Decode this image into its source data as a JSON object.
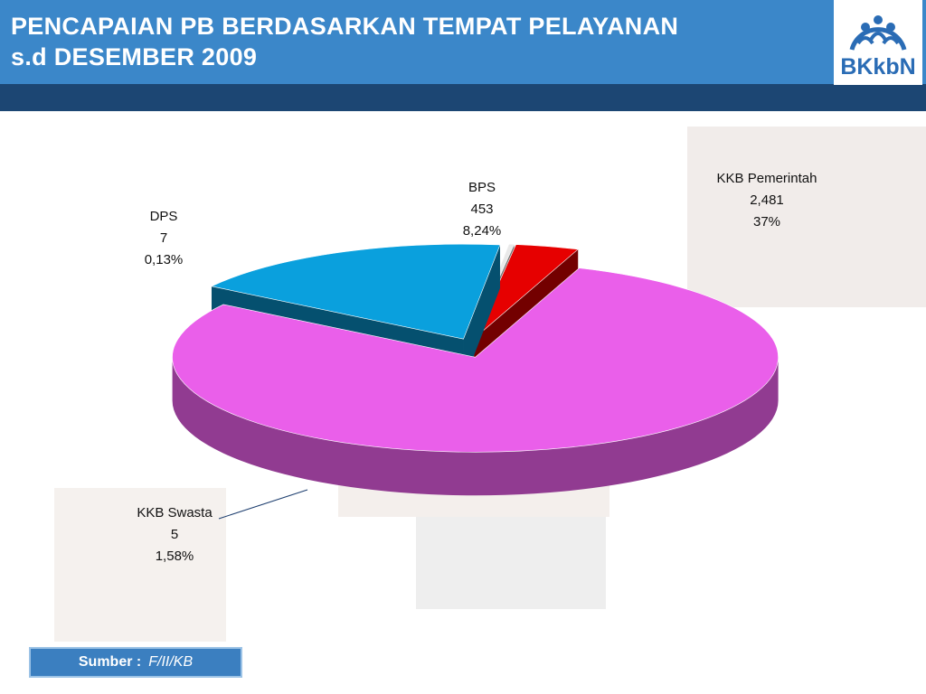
{
  "header": {
    "title_lines": [
      "PENCAPAIAN PB BERDASARKAN TEMPAT PELAYANAN",
      "s.d  DESEMBER  2009"
    ],
    "logo": "BKkbN"
  },
  "chart_data": {
    "type": "pie",
    "style": "3d-exploded",
    "categories": [
      "KKB Pemerintah",
      "BPS",
      "DPS",
      "KKB Swasta"
    ],
    "values": [
      2481,
      453,
      7,
      5
    ],
    "value_labels": [
      "2,481",
      "453",
      "7",
      "5"
    ],
    "percents": [
      37,
      8.24,
      0.13,
      1.58
    ],
    "percent_labels": [
      "37%",
      "8,24%",
      "0,13%",
      "1,58%"
    ],
    "colors": [
      "#ea5fea",
      "#0aa0dd",
      "#e9e9e9",
      "#e60000"
    ]
  },
  "source": {
    "label": "Sumber :",
    "value": "F/II/KB"
  }
}
